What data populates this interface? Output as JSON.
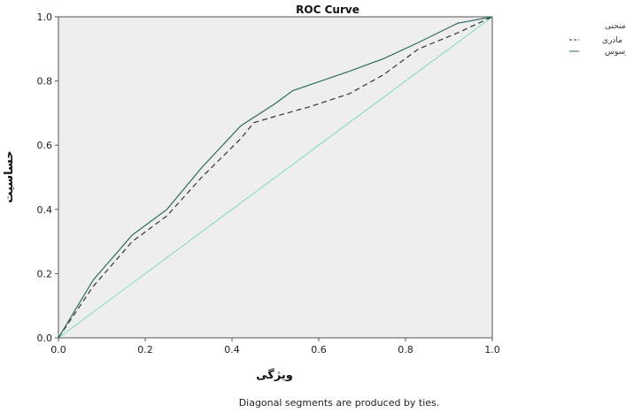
{
  "chart_data": {
    "type": "line",
    "title": "ROC Curve",
    "xlabel": "ویژگی",
    "ylabel": "حساسیت",
    "xlim": [
      0,
      1
    ],
    "ylim": [
      0,
      1
    ],
    "x_ticks": [
      "0.0",
      "0.2",
      "0.4",
      "0.6",
      "0.8",
      "1.0"
    ],
    "y_ticks": [
      "0.0",
      "0.2",
      "0.4",
      "0.6",
      "0.8",
      "1.0"
    ],
    "grid": false,
    "legend_title": "منبع منحنی",
    "legend_position": "top-right",
    "series": [
      {
        "name": "مادری",
        "style": "dashed",
        "color": "#333333",
        "x": [
          0,
          0.08,
          0.17,
          0.25,
          0.33,
          0.42,
          0.45,
          0.5,
          0.58,
          0.67,
          0.75,
          0.83,
          0.92,
          1.0
        ],
        "y": [
          0,
          0.16,
          0.3,
          0.38,
          0.5,
          0.62,
          0.67,
          0.69,
          0.72,
          0.76,
          0.82,
          0.9,
          0.95,
          1.0
        ]
      },
      {
        "name": "زالوسوس",
        "style": "solid",
        "color": "#2e6b62",
        "x": [
          0,
          0.08,
          0.17,
          0.25,
          0.33,
          0.42,
          0.5,
          0.54,
          0.67,
          0.75,
          0.83,
          0.92,
          1.0
        ],
        "y": [
          0,
          0.18,
          0.32,
          0.4,
          0.53,
          0.66,
          0.73,
          0.77,
          0.83,
          0.87,
          0.92,
          0.98,
          1.0
        ]
      }
    ],
    "footnote": "Diagonal segments are produced by ties."
  }
}
